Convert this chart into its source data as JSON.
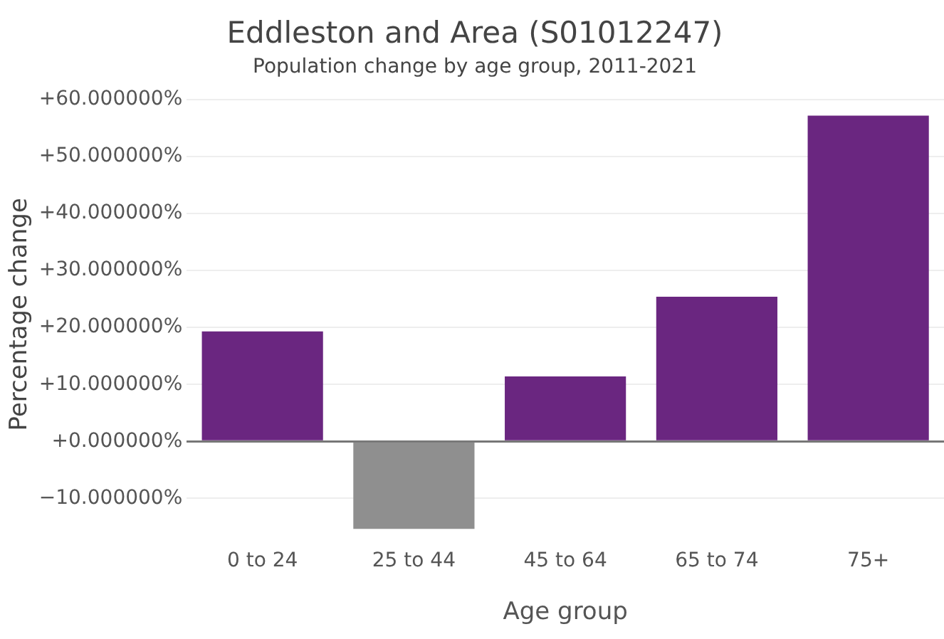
{
  "chart_data": {
    "type": "bar",
    "title": "Eddleston and Area (S01012247)",
    "subtitle": "Population change by age group, 2011-2021",
    "xlabel": "Age group",
    "ylabel": "Percentage change",
    "categories": [
      "0 to 24",
      "25 to 44",
      "45 to 64",
      "65 to 74",
      "75+"
    ],
    "values": [
      19.3,
      -15.4,
      11.4,
      25.4,
      57.2
    ],
    "colors": [
      "#6a2680",
      "#8f8f8f",
      "#6a2680",
      "#6a2680",
      "#6a2680"
    ],
    "ylim": [
      -15.4,
      60
    ],
    "yticks": [
      {
        "value": -10,
        "label": "−10.000000%"
      },
      {
        "value": 0,
        "label": "+0.000000%"
      },
      {
        "value": 10,
        "label": "+10.000000%"
      },
      {
        "value": 20,
        "label": "+20.000000%"
      },
      {
        "value": 30,
        "label": "+30.000000%"
      },
      {
        "value": 40,
        "label": "+40.000000%"
      },
      {
        "value": 50,
        "label": "+50.000000%"
      },
      {
        "value": 60,
        "label": "+60.000000%"
      }
    ],
    "grid": "y",
    "legend": false
  }
}
